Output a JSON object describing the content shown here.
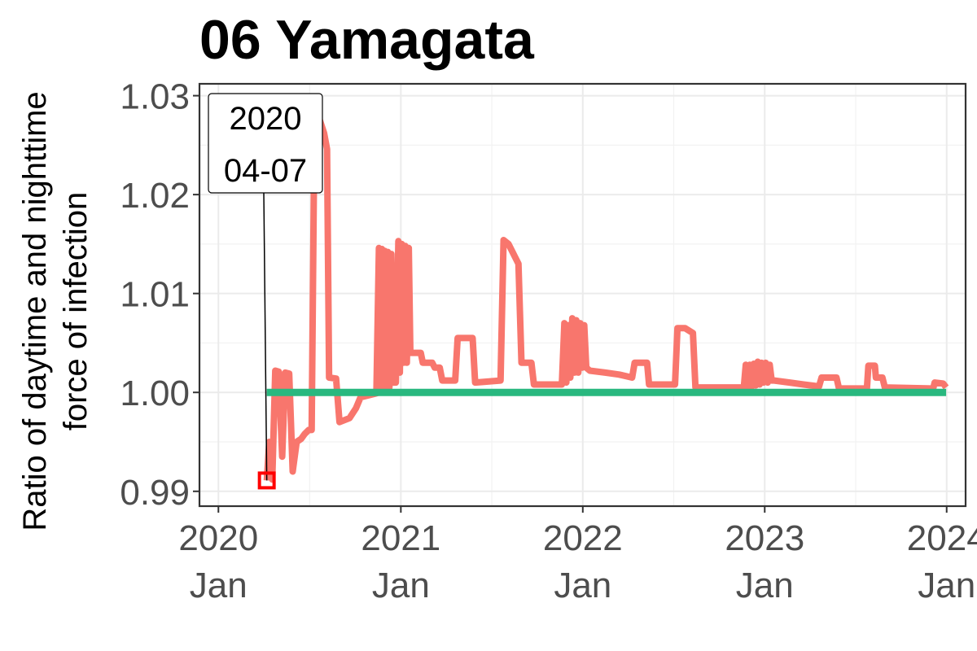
{
  "chart_data": {
    "type": "line",
    "title": "06 Yamagata",
    "ylabel_lines": [
      "Ratio of daytime and nighttime",
      "force of infection"
    ],
    "xlabel": "",
    "ylim": [
      0.9885,
      1.0312
    ],
    "xlim": [
      "2019-11-24",
      "2024-02-08"
    ],
    "y_ticks": [
      {
        "value": 0.99,
        "label": "0.99"
      },
      {
        "value": 1.0,
        "label": "1.00"
      },
      {
        "value": 1.01,
        "label": "1.01"
      },
      {
        "value": 1.02,
        "label": "1.02"
      },
      {
        "value": 1.03,
        "label": "1.03"
      }
    ],
    "x_ticks": [
      {
        "date": "2020-01-01",
        "line1": "2020",
        "line2": "Jan"
      },
      {
        "date": "2021-01-01",
        "line1": "2021",
        "line2": "Jan"
      },
      {
        "date": "2022-01-01",
        "line1": "2022",
        "line2": "Jan"
      },
      {
        "date": "2023-01-01",
        "line1": "2023",
        "line2": "Jan"
      },
      {
        "date": "2024-01-01",
        "line1": "2024",
        "line2": "Jan"
      }
    ],
    "grid": true,
    "legend": "none",
    "series": [
      {
        "color": "#F8766D",
        "points": [
          [
            "2020-04-07",
            0.9911
          ],
          [
            "2020-04-12",
            0.995
          ],
          [
            "2020-04-18",
            0.9912
          ],
          [
            "2020-04-24",
            1.0022
          ],
          [
            "2020-05-01",
            1.0021
          ],
          [
            "2020-05-08",
            0.9935
          ],
          [
            "2020-05-14",
            1.002
          ],
          [
            "2020-05-22",
            1.0019
          ],
          [
            "2020-05-29",
            0.992
          ],
          [
            "2020-06-06",
            0.995
          ],
          [
            "2020-06-15",
            0.9953
          ],
          [
            "2020-06-22",
            0.9958
          ],
          [
            "2020-06-30",
            0.9962
          ],
          [
            "2020-07-06",
            0.9962
          ],
          [
            "2020-07-12",
            1.0289
          ],
          [
            "2020-07-22",
            1.0276
          ],
          [
            "2020-07-31",
            1.0262
          ],
          [
            "2020-08-06",
            1.0246
          ],
          [
            "2020-08-10",
            1.0015
          ],
          [
            "2020-08-24",
            1.0014
          ],
          [
            "2020-08-31",
            0.997
          ],
          [
            "2020-09-20",
            0.9974
          ],
          [
            "2020-10-03",
            0.9984
          ],
          [
            "2020-10-12",
            0.9995
          ],
          [
            "2020-10-28",
            0.9997
          ],
          [
            "2020-11-13",
            0.9999
          ],
          [
            "2020-11-18",
            1.0146
          ],
          [
            "2020-11-21",
            1.0001
          ],
          [
            "2020-11-24",
            1.0145
          ],
          [
            "2020-11-27",
            1.0002
          ],
          [
            "2020-11-30",
            1.0143
          ],
          [
            "2020-12-03",
            1.0003
          ],
          [
            "2020-12-06",
            1.0142
          ],
          [
            "2020-12-09",
            1.0005
          ],
          [
            "2020-12-13",
            1.014
          ],
          [
            "2020-12-16",
            1.001
          ],
          [
            "2020-12-22",
            1.001
          ],
          [
            "2020-12-27",
            1.0153
          ],
          [
            "2020-12-30",
            1.002
          ],
          [
            "2021-01-03",
            1.015
          ],
          [
            "2021-01-06",
            1.003
          ],
          [
            "2021-01-10",
            1.0148
          ],
          [
            "2021-01-13",
            1.003
          ],
          [
            "2021-01-17",
            1.0146
          ],
          [
            "2021-01-20",
            1.004
          ],
          [
            "2021-02-10",
            1.004
          ],
          [
            "2021-02-14",
            1.003
          ],
          [
            "2021-03-05",
            1.003
          ],
          [
            "2021-03-10",
            1.0025
          ],
          [
            "2021-03-20",
            1.0025
          ],
          [
            "2021-03-25",
            1.0012
          ],
          [
            "2021-04-20",
            1.0012
          ],
          [
            "2021-04-25",
            1.0055
          ],
          [
            "2021-05-25",
            1.0055
          ],
          [
            "2021-05-30",
            1.001
          ],
          [
            "2021-07-20",
            1.0012
          ],
          [
            "2021-07-26",
            1.0154
          ],
          [
            "2021-08-05",
            1.015
          ],
          [
            "2021-08-15",
            1.014
          ],
          [
            "2021-08-25",
            1.013
          ],
          [
            "2021-08-31",
            1.003
          ],
          [
            "2021-09-20",
            1.003
          ],
          [
            "2021-09-25",
            1.0008
          ],
          [
            "2021-11-20",
            1.0008
          ],
          [
            "2021-11-25",
            1.007
          ],
          [
            "2021-11-29",
            1.001
          ],
          [
            "2021-12-03",
            1.0068
          ],
          [
            "2021-12-07",
            1.0015
          ],
          [
            "2021-12-11",
            1.0075
          ],
          [
            "2021-12-15",
            1.002
          ],
          [
            "2021-12-19",
            1.0073
          ],
          [
            "2021-12-23",
            1.002
          ],
          [
            "2021-12-27",
            1.007
          ],
          [
            "2021-12-31",
            1.0025
          ],
          [
            "2022-01-04",
            1.0068
          ],
          [
            "2022-01-08",
            1.0025
          ],
          [
            "2022-01-15",
            1.0022
          ],
          [
            "2022-02-15",
            1.002
          ],
          [
            "2022-03-15",
            1.0018
          ],
          [
            "2022-04-10",
            1.0015
          ],
          [
            "2022-04-15",
            1.003
          ],
          [
            "2022-05-10",
            1.003
          ],
          [
            "2022-05-14",
            1.0008
          ],
          [
            "2022-07-05",
            1.0008
          ],
          [
            "2022-07-10",
            1.0065
          ],
          [
            "2022-07-25",
            1.0065
          ],
          [
            "2022-08-10",
            1.006
          ],
          [
            "2022-08-15",
            1.0005
          ],
          [
            "2022-11-20",
            1.0005
          ],
          [
            "2022-11-24",
            1.0028
          ],
          [
            "2022-11-28",
            1.0006
          ],
          [
            "2022-12-02",
            1.0028
          ],
          [
            "2022-12-06",
            1.0006
          ],
          [
            "2022-12-10",
            1.0029
          ],
          [
            "2022-12-14",
            1.0007
          ],
          [
            "2022-12-18",
            1.0031
          ],
          [
            "2022-12-22",
            1.0008
          ],
          [
            "2022-12-26",
            1.003
          ],
          [
            "2022-12-30",
            1.001
          ],
          [
            "2023-01-03",
            1.003
          ],
          [
            "2023-01-07",
            1.001
          ],
          [
            "2023-01-11",
            1.0028
          ],
          [
            "2023-01-15",
            1.0012
          ],
          [
            "2023-01-20",
            1.0012
          ],
          [
            "2023-02-20",
            1.001
          ],
          [
            "2023-03-20",
            1.0008
          ],
          [
            "2023-04-20",
            1.0006
          ],
          [
            "2023-04-25",
            1.0015
          ],
          [
            "2023-05-25",
            1.0015
          ],
          [
            "2023-05-30",
            1.0004
          ],
          [
            "2023-07-25",
            1.0004
          ],
          [
            "2023-07-28",
            1.0027
          ],
          [
            "2023-08-10",
            1.0027
          ],
          [
            "2023-08-12",
            1.0015
          ],
          [
            "2023-08-25",
            1.0015
          ],
          [
            "2023-08-30",
            1.0005
          ],
          [
            "2023-12-05",
            1.0004
          ],
          [
            "2023-12-08",
            1.001
          ],
          [
            "2023-12-25",
            1.0009
          ],
          [
            "2023-12-31",
            1.0005
          ]
        ]
      },
      {
        "color": "#29B87F",
        "points": [
          [
            "2020-04-07",
            1.0
          ],
          [
            "2023-12-31",
            1.0
          ]
        ]
      }
    ],
    "annotation": {
      "date": "2020-04-07",
      "value": 0.9911,
      "label_line1": "2020",
      "label_line2": "04-07"
    }
  }
}
